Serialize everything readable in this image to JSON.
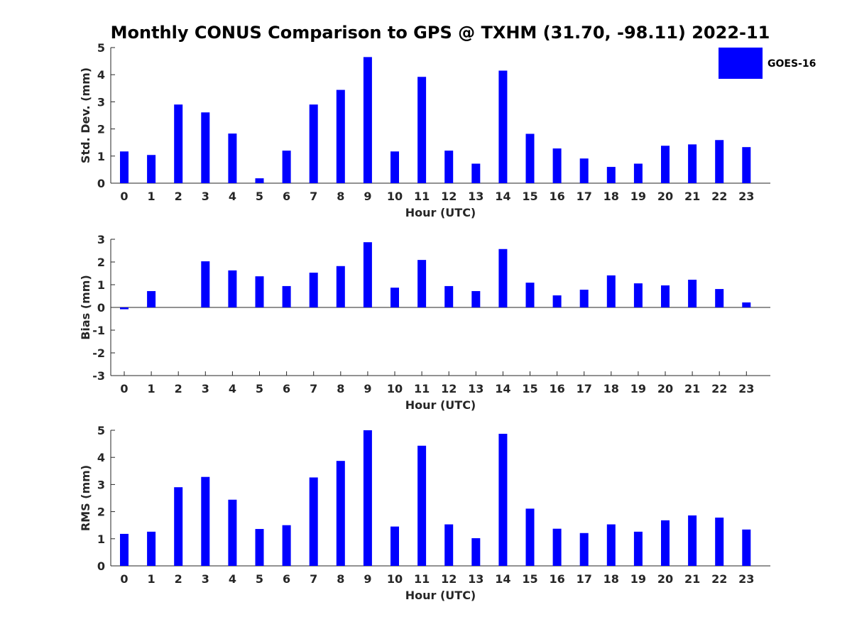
{
  "title": "Monthly CONUS Comparison to GPS @ TXHM (31.70, -98.11) 2022-11",
  "legend": {
    "label": "GOES-16",
    "color": "#0000ff"
  },
  "chart_data": [
    {
      "type": "bar",
      "ylabel": "Std. Dev. (mm)",
      "xlabel": "Hour (UTC)",
      "ylim": [
        0,
        5
      ],
      "yticks": [
        0,
        1,
        2,
        3,
        4,
        5
      ],
      "categories": [
        "0",
        "1",
        "2",
        "3",
        "4",
        "5",
        "6",
        "7",
        "8",
        "9",
        "10",
        "11",
        "12",
        "13",
        "14",
        "15",
        "16",
        "17",
        "18",
        "19",
        "20",
        "21",
        "22",
        "23"
      ],
      "series": [
        {
          "name": "GOES-16",
          "color": "#0000ff",
          "values": [
            1.17,
            1.04,
            2.9,
            2.61,
            1.83,
            0.18,
            1.2,
            2.9,
            3.44,
            4.65,
            1.17,
            3.92,
            1.2,
            0.72,
            4.15,
            1.82,
            1.28,
            0.91,
            0.6,
            0.72,
            1.38,
            1.43,
            1.59,
            1.33
          ]
        }
      ],
      "legend": "top-right"
    },
    {
      "type": "bar",
      "ylabel": "Bias (mm)",
      "xlabel": "Hour (UTC)",
      "ylim": [
        -3,
        3
      ],
      "yticks": [
        -3,
        -2,
        -1,
        0,
        1,
        2,
        3
      ],
      "categories": [
        "0",
        "1",
        "2",
        "3",
        "4",
        "5",
        "6",
        "7",
        "8",
        "9",
        "10",
        "11",
        "12",
        "13",
        "14",
        "15",
        "16",
        "17",
        "18",
        "19",
        "20",
        "21",
        "22",
        "23"
      ],
      "series": [
        {
          "name": "GOES-16",
          "color": "#0000ff",
          "values": [
            -0.08,
            0.72,
            0.0,
            2.03,
            1.63,
            1.37,
            0.94,
            1.53,
            1.82,
            2.87,
            0.87,
            2.09,
            0.94,
            0.72,
            2.57,
            1.09,
            0.53,
            0.78,
            1.41,
            1.06,
            0.97,
            1.22,
            0.81,
            0.22
          ]
        }
      ]
    },
    {
      "type": "bar",
      "ylabel": "RMS (mm)",
      "xlabel": "Hour (UTC)",
      "ylim": [
        0,
        5
      ],
      "yticks": [
        0,
        1,
        2,
        3,
        4,
        5
      ],
      "categories": [
        "0",
        "1",
        "2",
        "3",
        "4",
        "5",
        "6",
        "7",
        "8",
        "9",
        "10",
        "11",
        "12",
        "13",
        "14",
        "15",
        "16",
        "17",
        "18",
        "19",
        "20",
        "21",
        "22",
        "23"
      ],
      "series": [
        {
          "name": "GOES-16",
          "color": "#0000ff",
          "values": [
            1.18,
            1.26,
            2.9,
            3.28,
            2.44,
            1.36,
            1.5,
            3.26,
            3.87,
            5.0,
            1.45,
            4.43,
            1.53,
            1.02,
            4.87,
            2.11,
            1.37,
            1.21,
            1.53,
            1.26,
            1.68,
            1.86,
            1.78,
            1.34
          ]
        }
      ]
    }
  ]
}
